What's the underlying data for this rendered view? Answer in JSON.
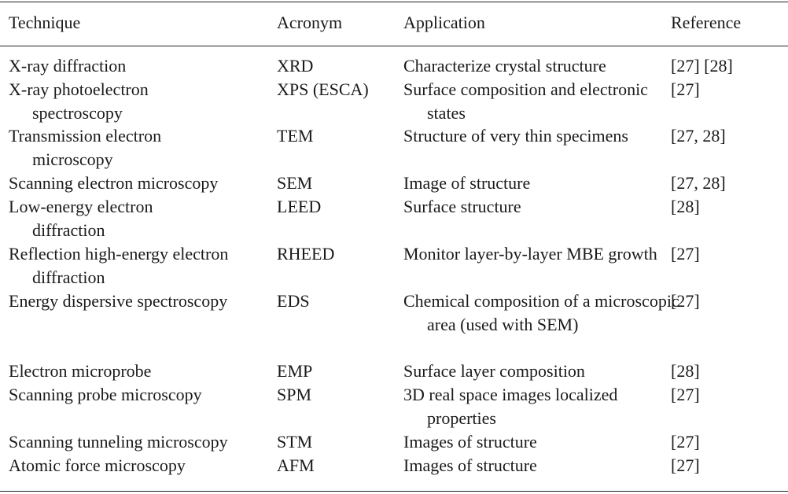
{
  "table": {
    "headers": {
      "technique": "Technique",
      "acronym": "Acronym",
      "application": "Application",
      "reference": "Reference"
    },
    "rows": [
      {
        "technique": "X-ray diffraction",
        "acronym": "XRD",
        "application": "Characterize crystal structure",
        "reference": "[27] [28]",
        "lines": 1
      },
      {
        "technique": "X-ray photoelectron spectroscopy",
        "acronym": "XPS (ESCA)",
        "application": "Surface composition and electronic states",
        "reference": "[27]",
        "lines": 2
      },
      {
        "technique": "Transmission electron microscopy",
        "acronym": "TEM",
        "application": "Structure of very thin specimens",
        "reference": "[27, 28]",
        "lines": 2
      },
      {
        "technique": "Scanning electron microscopy",
        "acronym": "SEM",
        "application": "Image of structure",
        "reference": "[27, 28]",
        "lines": 1
      },
      {
        "technique": "Low-energy electron diffraction",
        "acronym": "LEED",
        "application": "Surface structure",
        "reference": "[28]",
        "lines": 2
      },
      {
        "technique": "Reflection high-energy electron diffraction",
        "acronym": "RHEED",
        "application": "Monitor layer-by-layer MBE growth",
        "reference": "[27]",
        "lines": 2
      },
      {
        "technique": "Energy dispersive spectroscopy",
        "acronym": "EDS",
        "application": "Chemical composition of a microscopic area (used with SEM)",
        "reference": "[27]",
        "lines": 3
      },
      {
        "technique": "Electron microprobe",
        "acronym": "EMP",
        "application": "Surface layer composition",
        "reference": "[28]",
        "lines": 1
      },
      {
        "technique": "Scanning probe microscopy",
        "acronym": "SPM",
        "application": "3D real space images localized properties",
        "reference": "[27]",
        "lines": 2
      },
      {
        "technique": "Scanning tunneling microscopy",
        "acronym": "STM",
        "application": "Images of structure",
        "reference": "[27]",
        "lines": 1
      },
      {
        "technique": "Atomic force microscopy",
        "acronym": "AFM",
        "application": "Images of structure",
        "reference": "[27]",
        "lines": 1
      }
    ]
  }
}
